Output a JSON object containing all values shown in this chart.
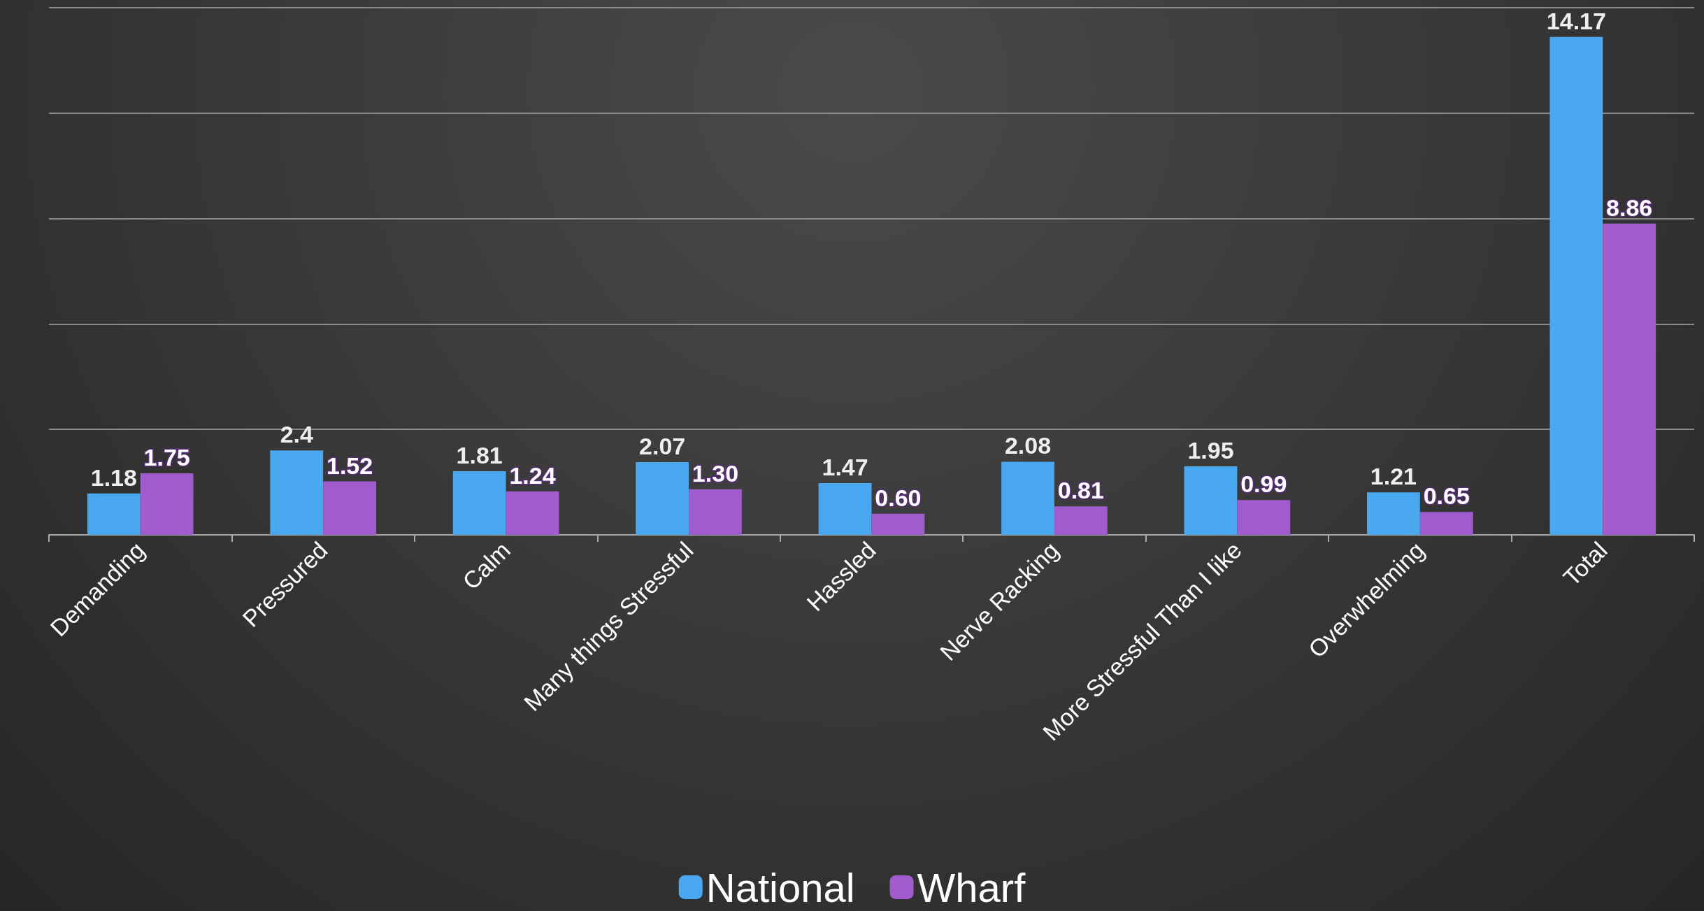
{
  "chart_data": {
    "type": "bar",
    "categories": [
      "Demanding",
      "Pressured",
      "Calm",
      "Many things Stressful",
      "Hassled",
      "Nerve Racking",
      "More Stressful Than I like",
      "Overwhelming",
      "Total"
    ],
    "series": [
      {
        "name": "National",
        "color": "#4aa8f0",
        "values": [
          1.18,
          2.4,
          1.81,
          2.07,
          1.47,
          2.08,
          1.95,
          1.21,
          14.17
        ],
        "value_labels": [
          "1.18",
          "2.4",
          "1.81",
          "2.07",
          "1.47",
          "2.08",
          "1.95",
          "1.21",
          "14.17"
        ]
      },
      {
        "name": "Wharf",
        "color": "#a05ccc",
        "values": [
          1.75,
          1.52,
          1.24,
          1.3,
          0.6,
          0.81,
          0.99,
          0.65,
          8.86
        ],
        "value_labels": [
          "1.75",
          "1.52",
          "1.24",
          "1.30",
          "0.60",
          "0.81",
          "0.99",
          "0.65",
          "8.86"
        ]
      }
    ],
    "tick_labels": "x",
    "grid": "y",
    "legend": "bottom"
  }
}
